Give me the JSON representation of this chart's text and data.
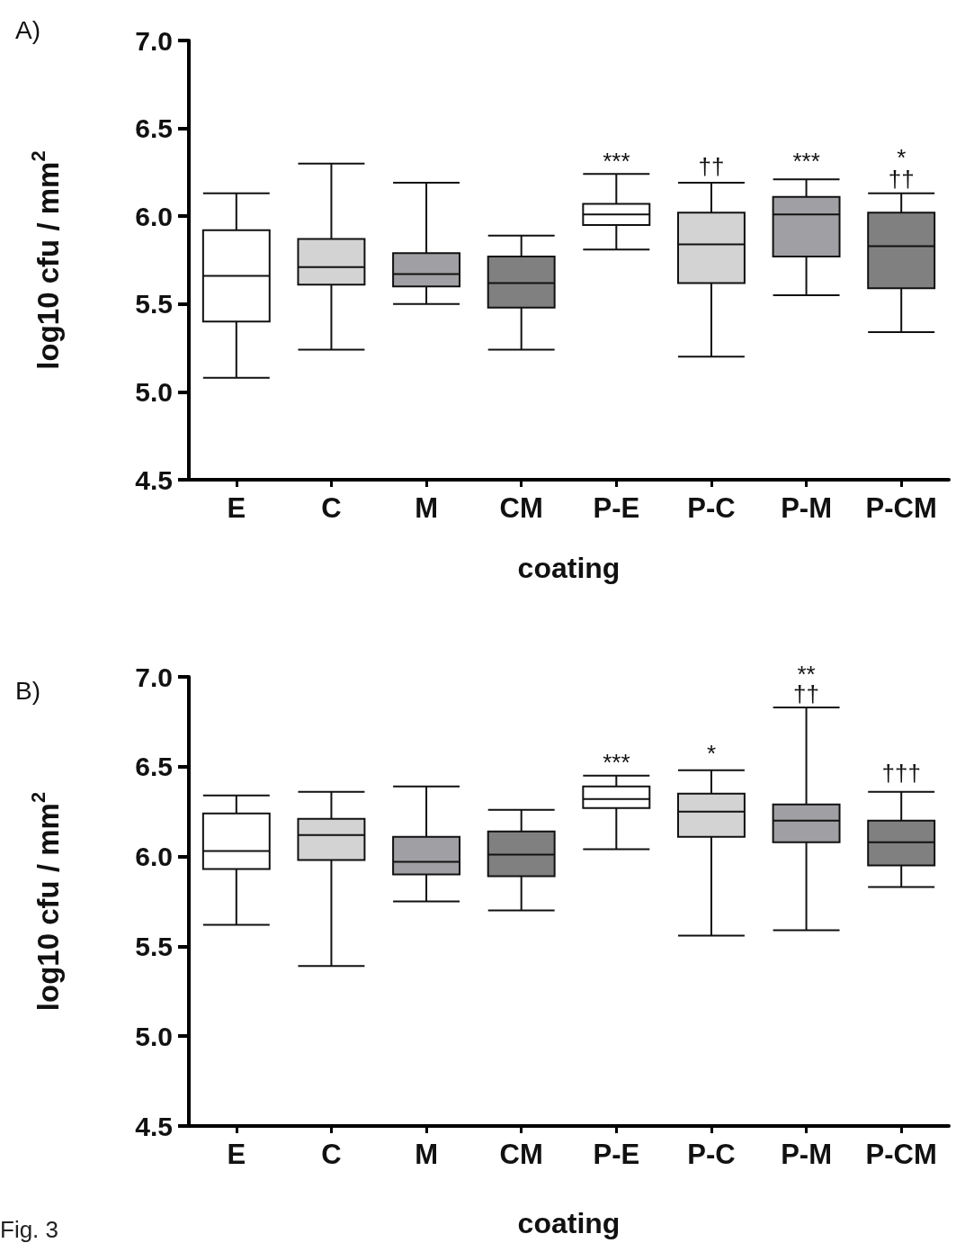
{
  "chart_data": [
    {
      "type": "box",
      "title": "A)",
      "xlabel": "coating",
      "ylabel": "log10 cfu / mm$^{2}$",
      "categories": [
        "E",
        "C",
        "M",
        "CM",
        "P-E",
        "P-C",
        "P-M",
        "P-CM"
      ],
      "colors": [
        "#ffffff",
        "#d3d3d3",
        "#a0a0a4",
        "#808080",
        "#ffffff",
        "#d3d3d3",
        "#a0a0a4",
        "#808080"
      ],
      "boxes": [
        {
          "low": 5.08,
          "q1": 5.4,
          "median": 5.66,
          "q3": 5.92,
          "high": 6.13
        },
        {
          "low": 5.24,
          "q1": 5.61,
          "median": 5.71,
          "q3": 5.87,
          "high": 6.3
        },
        {
          "low": 5.5,
          "q1": 5.6,
          "median": 5.67,
          "q3": 5.79,
          "high": 6.19
        },
        {
          "low": 5.24,
          "q1": 5.48,
          "median": 5.62,
          "q3": 5.77,
          "high": 5.89
        },
        {
          "low": 5.81,
          "q1": 5.95,
          "median": 6.01,
          "q3": 6.07,
          "high": 6.24
        },
        {
          "low": 5.2,
          "q1": 5.62,
          "median": 5.84,
          "q3": 6.02,
          "high": 6.19
        },
        {
          "low": 5.55,
          "q1": 5.77,
          "median": 6.01,
          "q3": 6.11,
          "high": 6.21
        },
        {
          "low": 5.34,
          "q1": 5.59,
          "median": 5.83,
          "q3": 6.02,
          "high": 6.13
        }
      ],
      "ylim": [
        4.5,
        7.0
      ],
      "yticks": [
        {
          "value": 4.5,
          "label": "4.5"
        },
        {
          "value": 5.0,
          "label": "5.0"
        },
        {
          "value": 5.5,
          "label": "5.5"
        },
        {
          "value": 6.0,
          "label": "6.0"
        },
        {
          "value": 6.5,
          "label": "6.5"
        },
        {
          "value": 7.0,
          "label": "7.0"
        }
      ],
      "grid": false,
      "annotations": [
        "***",
        "††",
        "***",
        "††",
        "*"
      ]
    },
    {
      "type": "box",
      "title": "B)",
      "xlabel": "coating",
      "ylabel": "log10 cfu / mm$^{2}$",
      "categories": [
        "E",
        "C",
        "M",
        "CM",
        "P-E",
        "P-C",
        "P-M",
        "P-CM"
      ],
      "colors": [
        "#ffffff",
        "#d3d3d3",
        "#a0a0a4",
        "#808080",
        "#ffffff",
        "#d3d3d3",
        "#a0a0a4",
        "#808080"
      ],
      "boxes": [
        {
          "low": 5.62,
          "q1": 5.93,
          "median": 6.03,
          "q3": 6.24,
          "high": 6.34
        },
        {
          "low": 5.39,
          "q1": 5.98,
          "median": 6.12,
          "q3": 6.21,
          "high": 6.36
        },
        {
          "low": 5.75,
          "q1": 5.9,
          "median": 5.97,
          "q3": 6.11,
          "high": 6.39
        },
        {
          "low": 5.7,
          "q1": 5.89,
          "median": 6.01,
          "q3": 6.14,
          "high": 6.26
        },
        {
          "low": 6.04,
          "q1": 6.27,
          "median": 6.32,
          "q3": 6.39,
          "high": 6.45
        },
        {
          "low": 5.56,
          "q1": 6.11,
          "median": 6.25,
          "q3": 6.35,
          "high": 6.48
        },
        {
          "low": 5.59,
          "q1": 6.08,
          "median": 6.2,
          "q3": 6.29,
          "high": 6.83
        },
        {
          "low": 5.83,
          "q1": 5.95,
          "median": 6.08,
          "q3": 6.2,
          "high": 6.36
        }
      ],
      "ylim": [
        4.5,
        7.0
      ],
      "yticks": [
        {
          "value": 4.5,
          "label": "4.5"
        },
        {
          "value": 5.0,
          "label": "5.0"
        },
        {
          "value": 5.5,
          "label": "5.5"
        },
        {
          "value": 6.0,
          "label": "6.0"
        },
        {
          "value": 6.5,
          "label": "6.5"
        },
        {
          "value": 7.0,
          "label": "7.0"
        }
      ],
      "grid": false,
      "annotations": [
        "***",
        "*",
        "††",
        "**",
        "†††",
        "Fig. 3"
      ]
    }
  ]
}
